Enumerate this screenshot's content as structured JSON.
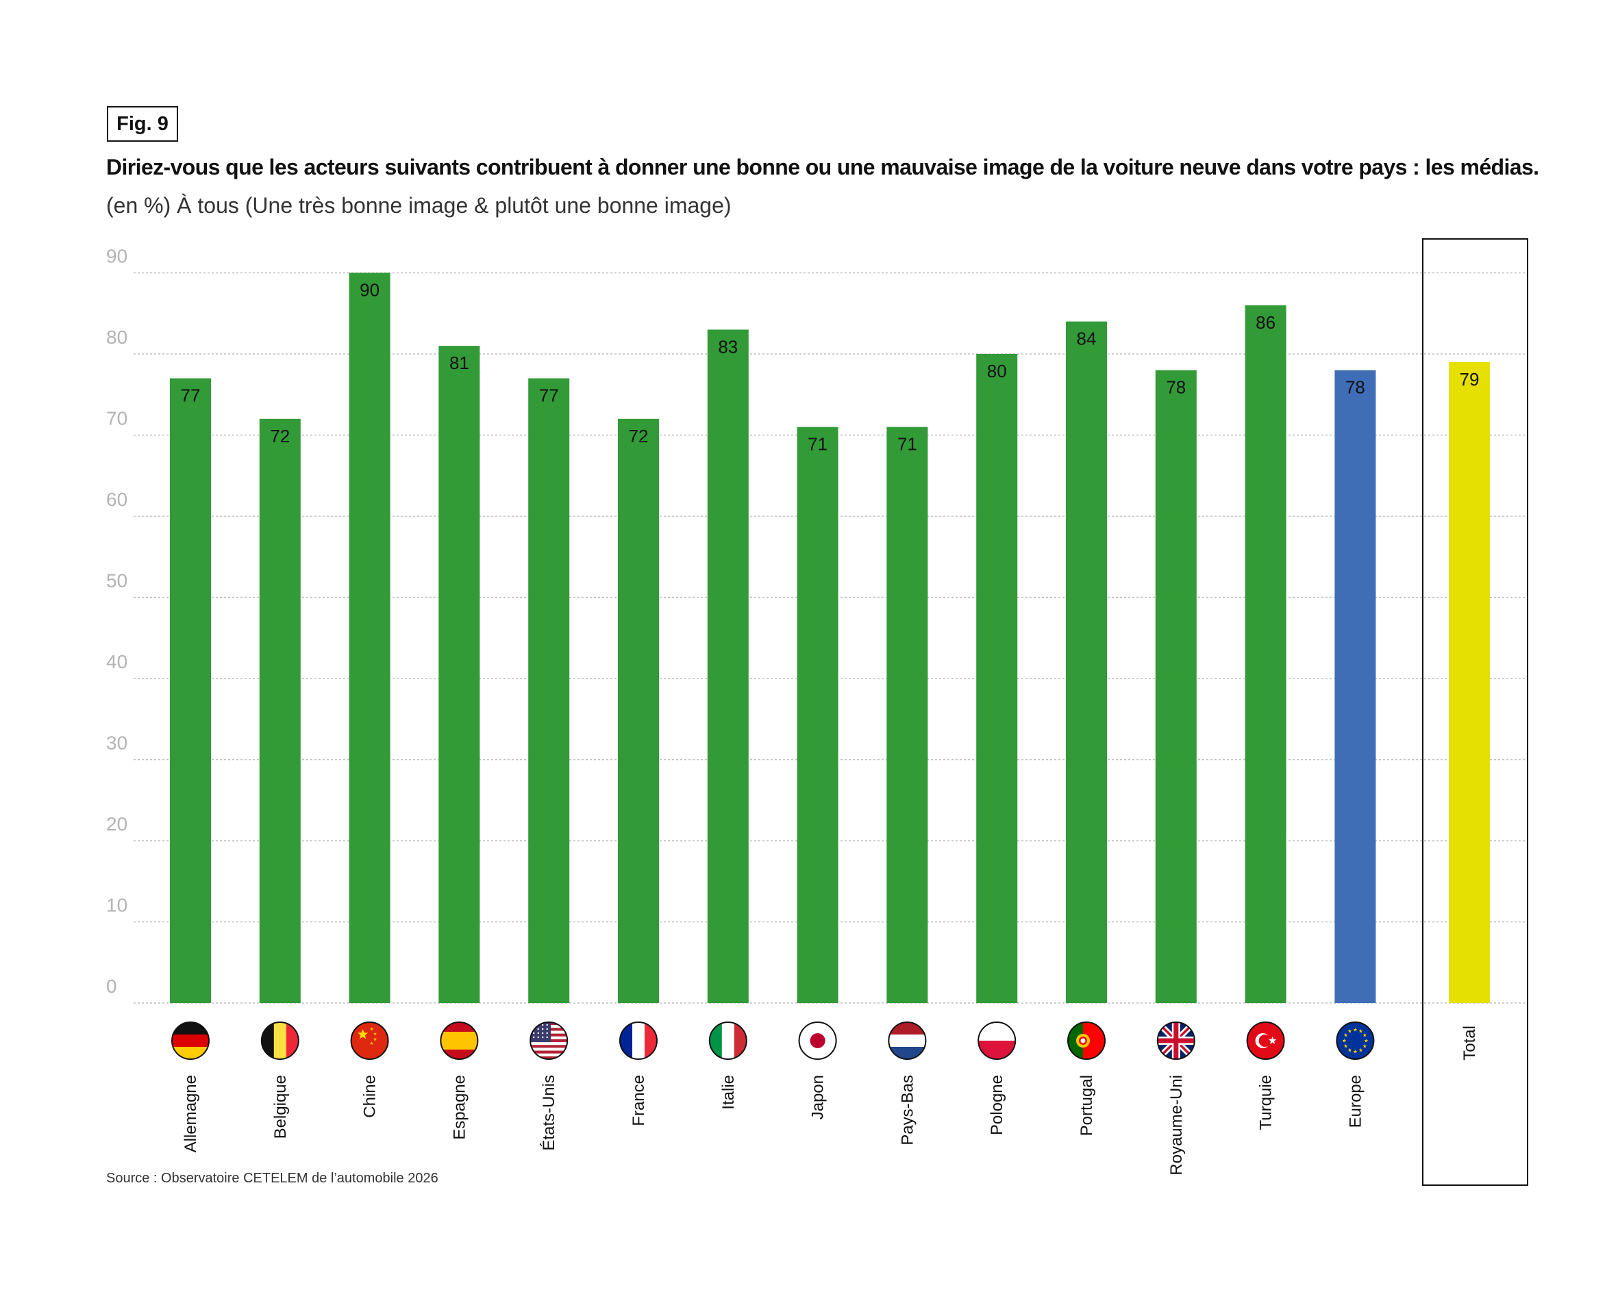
{
  "figure_label": "Fig. 9",
  "source": "Source : Observatoire CETELEM de l’automobile 2026",
  "chart_data": {
    "type": "bar",
    "title": "Diriez-vous que les acteurs suivants contribuent à donner une bonne ou une mauvaise image de la voiture neuve dans votre pays : les médias.",
    "subtitle": "(en %) À tous (Une très bonne image & plutôt une bonne image)",
    "xlabel": "",
    "ylabel": "",
    "ylim": [
      0,
      90
    ],
    "yticks": [
      0,
      10,
      20,
      30,
      40,
      50,
      60,
      70,
      80,
      90
    ],
    "grid": true,
    "categories": [
      "Allemagne",
      "Belgique",
      "Chine",
      "Espagne",
      "États-Unis",
      "France",
      "Italie",
      "Japon",
      "Pays-Bas",
      "Pologne",
      "Portugal",
      "Royaume-Uni",
      "Turquie",
      "Europe",
      "Total"
    ],
    "values": [
      77,
      72,
      90,
      81,
      77,
      72,
      83,
      71,
      71,
      80,
      84,
      78,
      86,
      78,
      79
    ],
    "flags": [
      "de-flag-icon",
      "be-flag-icon",
      "cn-flag-icon",
      "es-flag-icon",
      "us-flag-icon",
      "fr-flag-icon",
      "it-flag-icon",
      "jp-flag-icon",
      "nl-flag-icon",
      "pl-flag-icon",
      "pt-flag-icon",
      "gb-flag-icon",
      "tr-flag-icon",
      "eu-flag-icon",
      ""
    ],
    "bar_colors": [
      "#339a38",
      "#339a38",
      "#339a38",
      "#339a38",
      "#339a38",
      "#339a38",
      "#339a38",
      "#339a38",
      "#339a38",
      "#339a38",
      "#339a38",
      "#339a38",
      "#339a38",
      "#3f6db6",
      "#e6e000"
    ],
    "highlight": "Total"
  }
}
